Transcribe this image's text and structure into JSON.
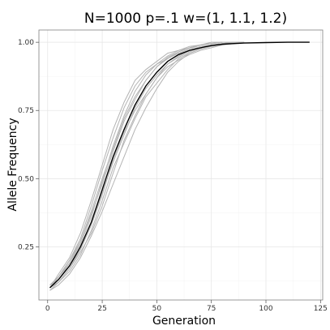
{
  "chart_data": {
    "type": "line",
    "title": "N=1000   p=.1   w=(1, 1.1, 1.2)",
    "xlabel": "Generation",
    "ylabel": "Allele Frequency",
    "xlim": [
      -4,
      126
    ],
    "ylim": [
      0.055,
      1.045
    ],
    "x_ticks": [
      0,
      25,
      50,
      75,
      100,
      125
    ],
    "x_tick_labels": [
      "0",
      "25",
      "50",
      "75",
      "100",
      "125"
    ],
    "y_ticks": [
      0.25,
      0.5,
      0.75,
      1.0
    ],
    "y_tick_labels": [
      "0.25",
      "0.50",
      "0.75",
      "1.00"
    ],
    "grid": true,
    "legend": "none",
    "colors": {
      "replicates": "#b3b3b3",
      "expected": "#000000"
    },
    "expected": {
      "x": [
        1,
        5,
        10,
        15,
        20,
        25,
        30,
        35,
        40,
        45,
        50,
        55,
        60,
        65,
        70,
        75,
        80,
        90,
        100,
        110,
        120
      ],
      "y": [
        0.1,
        0.13,
        0.18,
        0.25,
        0.34,
        0.46,
        0.58,
        0.68,
        0.77,
        0.84,
        0.89,
        0.93,
        0.955,
        0.97,
        0.98,
        0.988,
        0.993,
        0.997,
        0.999,
        1.0,
        1.0
      ]
    },
    "replicates": [
      {
        "x": [
          1,
          5,
          10,
          15,
          20,
          25,
          30,
          35,
          40,
          45,
          50,
          55,
          60,
          65,
          70,
          75,
          80,
          85,
          90
        ],
        "y": [
          0.1,
          0.12,
          0.17,
          0.23,
          0.3,
          0.4,
          0.52,
          0.64,
          0.73,
          0.81,
          0.87,
          0.92,
          0.95,
          0.97,
          0.985,
          0.99,
          0.995,
          1.0,
          1.0
        ]
      },
      {
        "x": [
          1,
          5,
          10,
          15,
          20,
          25,
          30,
          35,
          40,
          45,
          50,
          55,
          60,
          65,
          70,
          75,
          80,
          85
        ],
        "y": [
          0.11,
          0.14,
          0.19,
          0.27,
          0.38,
          0.5,
          0.61,
          0.72,
          0.8,
          0.86,
          0.91,
          0.94,
          0.965,
          0.98,
          0.99,
          0.995,
          1.0,
          1.0
        ]
      },
      {
        "x": [
          1,
          5,
          10,
          15,
          20,
          25,
          30,
          35,
          40,
          45,
          50,
          55,
          60,
          65,
          70,
          75,
          80
        ],
        "y": [
          0.1,
          0.15,
          0.21,
          0.3,
          0.42,
          0.55,
          0.68,
          0.78,
          0.86,
          0.9,
          0.93,
          0.96,
          0.97,
          0.985,
          0.99,
          1.0,
          1.0
        ]
      },
      {
        "x": [
          1,
          5,
          10,
          15,
          20,
          25,
          30,
          35,
          40,
          45,
          50,
          55,
          60,
          65,
          70,
          75,
          80,
          85,
          90
        ],
        "y": [
          0.09,
          0.11,
          0.15,
          0.21,
          0.29,
          0.38,
          0.48,
          0.58,
          0.68,
          0.76,
          0.83,
          0.89,
          0.93,
          0.96,
          0.975,
          0.985,
          0.993,
          1.0,
          1.0
        ]
      },
      {
        "x": [
          1,
          5,
          10,
          15,
          20,
          25,
          30,
          35,
          40,
          45,
          50,
          55,
          60,
          65,
          70,
          75,
          80
        ],
        "y": [
          0.1,
          0.14,
          0.2,
          0.28,
          0.4,
          0.53,
          0.65,
          0.76,
          0.84,
          0.89,
          0.92,
          0.94,
          0.96,
          0.975,
          0.99,
          0.995,
          1.0
        ]
      },
      {
        "x": [
          1,
          5,
          10,
          15,
          20,
          25,
          30,
          35,
          40,
          45,
          50,
          55,
          60,
          65,
          70,
          75,
          80,
          85
        ],
        "y": [
          0.11,
          0.13,
          0.18,
          0.24,
          0.33,
          0.45,
          0.56,
          0.66,
          0.76,
          0.83,
          0.88,
          0.92,
          0.945,
          0.965,
          0.98,
          0.99,
          0.995,
          1.0
        ]
      },
      {
        "x": [
          1,
          5,
          10,
          15,
          20,
          25,
          30,
          35,
          40,
          45,
          50,
          55,
          60,
          65,
          70,
          75,
          80,
          85,
          90
        ],
        "y": [
          0.1,
          0.12,
          0.16,
          0.22,
          0.31,
          0.42,
          0.54,
          0.63,
          0.72,
          0.8,
          0.85,
          0.9,
          0.94,
          0.96,
          0.975,
          0.985,
          0.992,
          0.998,
          1.0
        ]
      },
      {
        "x": [
          1,
          5,
          10,
          15,
          20,
          25,
          30,
          35,
          40,
          45,
          50,
          55,
          60,
          65,
          70,
          75,
          80
        ],
        "y": [
          0.1,
          0.14,
          0.2,
          0.27,
          0.37,
          0.48,
          0.6,
          0.71,
          0.79,
          0.86,
          0.91,
          0.945,
          0.965,
          0.98,
          0.99,
          0.996,
          1.0
        ]
      },
      {
        "x": [
          1,
          5,
          10,
          15,
          20,
          25,
          30,
          35,
          40,
          45,
          50,
          55,
          60,
          65,
          70,
          75,
          80,
          85,
          90
        ],
        "y": [
          0.09,
          0.12,
          0.17,
          0.24,
          0.33,
          0.44,
          0.57,
          0.67,
          0.75,
          0.81,
          0.87,
          0.91,
          0.935,
          0.955,
          0.97,
          0.98,
          0.99,
          0.995,
          1.0
        ]
      },
      {
        "x": [
          1,
          5,
          10,
          15,
          20,
          25,
          30,
          35,
          40,
          45,
          50,
          55,
          60,
          65,
          70,
          75,
          80
        ],
        "y": [
          0.1,
          0.13,
          0.19,
          0.26,
          0.36,
          0.49,
          0.62,
          0.73,
          0.82,
          0.88,
          0.92,
          0.95,
          0.97,
          0.98,
          0.99,
          0.995,
          1.0
        ]
      }
    ]
  }
}
